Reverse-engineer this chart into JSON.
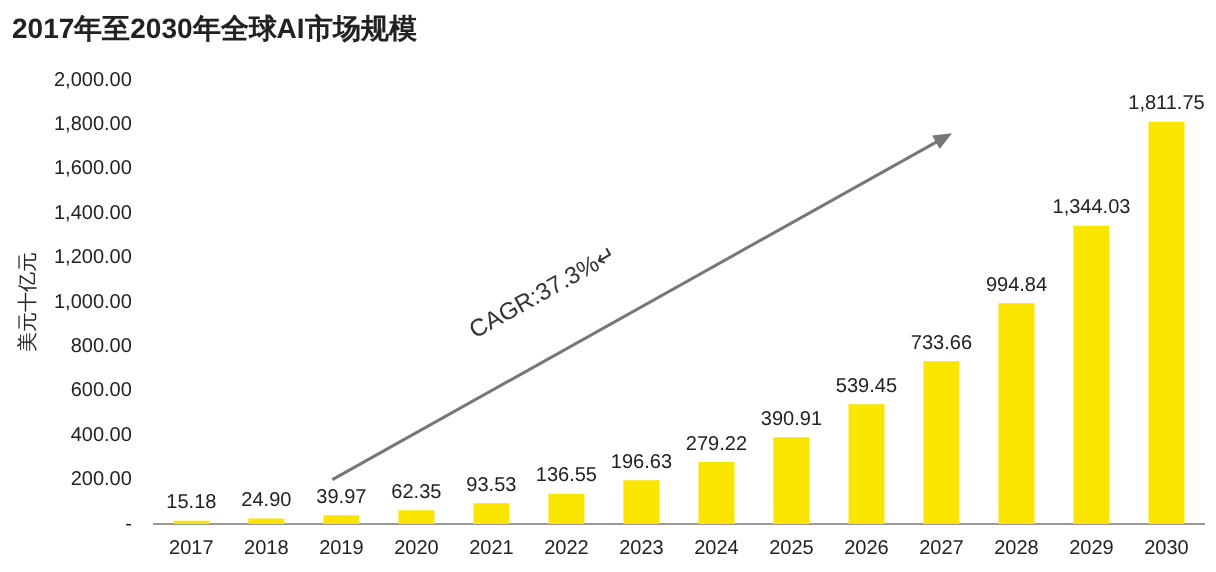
{
  "chart_data": {
    "type": "bar",
    "title": "2017年至2030年全球AI市场规模",
    "ylabel": "美元十亿元",
    "categories": [
      "2017",
      "2018",
      "2019",
      "2020",
      "2021",
      "2022",
      "2023",
      "2024",
      "2025",
      "2026",
      "2027",
      "2028",
      "2029",
      "2030"
    ],
    "values": [
      15.18,
      24.9,
      39.97,
      62.35,
      93.53,
      136.55,
      196.63,
      279.22,
      390.91,
      539.45,
      733.66,
      994.84,
      1344.03,
      1811.75
    ],
    "value_labels": [
      "15.18",
      "24.90",
      "39.97",
      "62.35",
      "93.53",
      "136.55",
      "196.63",
      "279.22",
      "390.91",
      "539.45",
      "733.66",
      "994.84",
      "1,344.03",
      "1,811.75"
    ],
    "color": "#fae500",
    "ylim": [
      0,
      2000
    ],
    "yticks": [
      {
        "value": 0,
        "label": "-"
      },
      {
        "value": 200,
        "label": "200.00"
      },
      {
        "value": 400,
        "label": "400.00"
      },
      {
        "value": 600,
        "label": "600.00"
      },
      {
        "value": 800,
        "label": "800.00"
      },
      {
        "value": 1000,
        "label": "1,000.00"
      },
      {
        "value": 1200,
        "label": "1,200.00"
      },
      {
        "value": 1400,
        "label": "1,400.00"
      },
      {
        "value": 1600,
        "label": "1,600.00"
      },
      {
        "value": 1800,
        "label": "1,800.00"
      },
      {
        "value": 2000,
        "label": "2,000.00"
      }
    ],
    "annotations": [
      "CAGR:37.3%↵"
    ],
    "grid": false,
    "legend": false
  }
}
